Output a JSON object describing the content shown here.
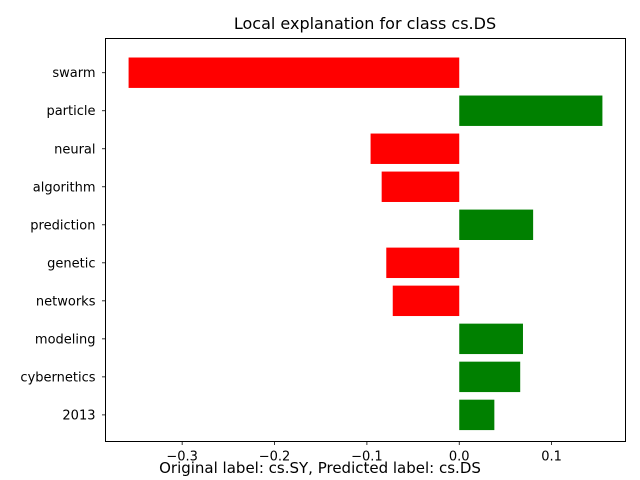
{
  "chart_data": {
    "type": "bar",
    "orientation": "horizontal",
    "title": "Local explanation for class cs.DS",
    "xlabel": "",
    "ylabel": "",
    "categories": [
      "swarm",
      "particle",
      "neural",
      "algorithm",
      "prediction",
      "genetic",
      "networks",
      "modeling",
      "cybernetics",
      "2013"
    ],
    "values": [
      -0.358,
      0.155,
      -0.096,
      -0.084,
      0.08,
      -0.079,
      -0.072,
      0.069,
      0.066,
      0.038
    ],
    "xlim": [
      -0.383,
      0.18
    ],
    "xticks": [
      -0.3,
      -0.2,
      -0.1,
      0.0,
      0.1
    ],
    "xtick_labels": [
      "−0.3",
      "−0.2",
      "−0.1",
      "0.0",
      "0.1"
    ],
    "colors": {
      "positive": "#008000",
      "negative": "#ff0000"
    },
    "grid": false,
    "legend": "none"
  },
  "caption": "Original label: cs.SY, Predicted label: cs.DS"
}
